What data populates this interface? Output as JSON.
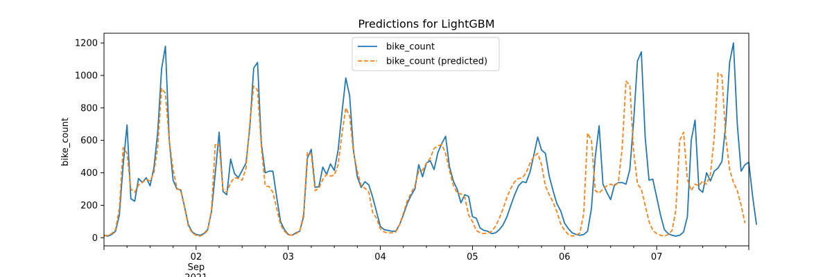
{
  "chart_data": {
    "type": "line",
    "title": "Predictions for LightGBM",
    "xlabel": "",
    "ylabel": "bike_count",
    "ylim": [
      -50,
      1260
    ],
    "xlim": [
      0,
      168
    ],
    "y_ticks": [
      0,
      200,
      400,
      600,
      800,
      1000,
      1200
    ],
    "y_tick_labels": [
      "0",
      "200",
      "400",
      "600",
      "800",
      "1000",
      "1200"
    ],
    "x_major_ticks": [
      {
        "x": 24,
        "label": "02",
        "sublabel": "Sep",
        "year": "2021"
      },
      {
        "x": 48,
        "label": "03"
      },
      {
        "x": 72,
        "label": "04"
      },
      {
        "x": 96,
        "label": "05"
      },
      {
        "x": 120,
        "label": "06"
      },
      {
        "x": 144,
        "label": "07"
      }
    ],
    "legend": {
      "placement": "top-center",
      "entries": [
        {
          "label": "bike_count",
          "color": "#1f77b4",
          "style": "solid"
        },
        {
          "label": "bike_count (predicted)",
          "color": "#ff7f0e",
          "style": "dashed"
        }
      ]
    },
    "series": [
      {
        "name": "bike_count",
        "color": "#1f77b4",
        "style": "solid",
        "values": [
          15,
          10,
          20,
          40,
          140,
          450,
          695,
          240,
          225,
          365,
          340,
          370,
          320,
          430,
          650,
          1040,
          1180,
          600,
          355,
          300,
          295,
          190,
          80,
          35,
          20,
          15,
          25,
          50,
          160,
          400,
          650,
          285,
          265,
          485,
          395,
          370,
          415,
          460,
          680,
          1045,
          1080,
          580,
          400,
          410,
          410,
          250,
          100,
          50,
          20,
          15,
          30,
          40,
          130,
          490,
          545,
          310,
          315,
          435,
          390,
          455,
          415,
          540,
          770,
          985,
          875,
          540,
          375,
          310,
          345,
          325,
          250,
          160,
          70,
          50,
          45,
          40,
          40,
          80,
          140,
          210,
          260,
          300,
          450,
          375,
          460,
          475,
          420,
          525,
          580,
          625,
          440,
          350,
          300,
          215,
          265,
          255,
          130,
          120,
          60,
          45,
          40,
          25,
          30,
          50,
          80,
          130,
          200,
          265,
          320,
          345,
          340,
          405,
          510,
          620,
          540,
          520,
          380,
          290,
          210,
          165,
          90,
          55,
          30,
          20,
          15,
          20,
          40,
          180,
          500,
          690,
          330,
          280,
          235,
          325,
          340,
          340,
          330,
          420,
          720,
          1090,
          1145,
          620,
          355,
          360,
          250,
          140,
          50,
          25,
          15,
          10,
          15,
          35,
          130,
          600,
          725,
          300,
          280,
          400,
          350,
          410,
          430,
          470,
          700,
          1080,
          1200,
          700,
          410,
          450,
          465,
          255,
          80
        ]
      },
      {
        "name": "bike_count (predicted)",
        "color": "#ff7f0e",
        "style": "dashed",
        "values": [
          10,
          15,
          25,
          50,
          180,
          555,
          520,
          300,
          280,
          325,
          340,
          360,
          350,
          400,
          560,
          920,
          890,
          600,
          420,
          305,
          290,
          185,
          70,
          30,
          15,
          10,
          20,
          45,
          170,
          580,
          570,
          300,
          280,
          340,
          370,
          365,
          355,
          430,
          710,
          935,
          910,
          560,
          320,
          315,
          280,
          180,
          80,
          40,
          20,
          15,
          25,
          40,
          145,
          525,
          515,
          290,
          305,
          360,
          390,
          380,
          385,
          450,
          640,
          800,
          750,
          525,
          410,
          320,
          305,
          280,
          155,
          120,
          55,
          35,
          30,
          30,
          35,
          80,
          150,
          225,
          275,
          320,
          410,
          415,
          460,
          490,
          550,
          565,
          575,
          520,
          415,
          325,
          275,
          270,
          250,
          140,
          100,
          45,
          30,
          25,
          30,
          40,
          70,
          120,
          180,
          250,
          305,
          345,
          365,
          370,
          400,
          460,
          500,
          520,
          450,
          320,
          265,
          220,
          160,
          85,
          45,
          20,
          10,
          15,
          30,
          150,
          645,
          600,
          290,
          275,
          300,
          320,
          330,
          320,
          340,
          550,
          965,
          940,
          530,
          330,
          300,
          200,
          100,
          45,
          25,
          15,
          10,
          20,
          45,
          170,
          600,
          650,
          360,
          290,
          330,
          320,
          350,
          330,
          390,
          620,
          1015,
          1000,
          620,
          420,
          340,
          290,
          200,
          90
        ]
      }
    ]
  }
}
